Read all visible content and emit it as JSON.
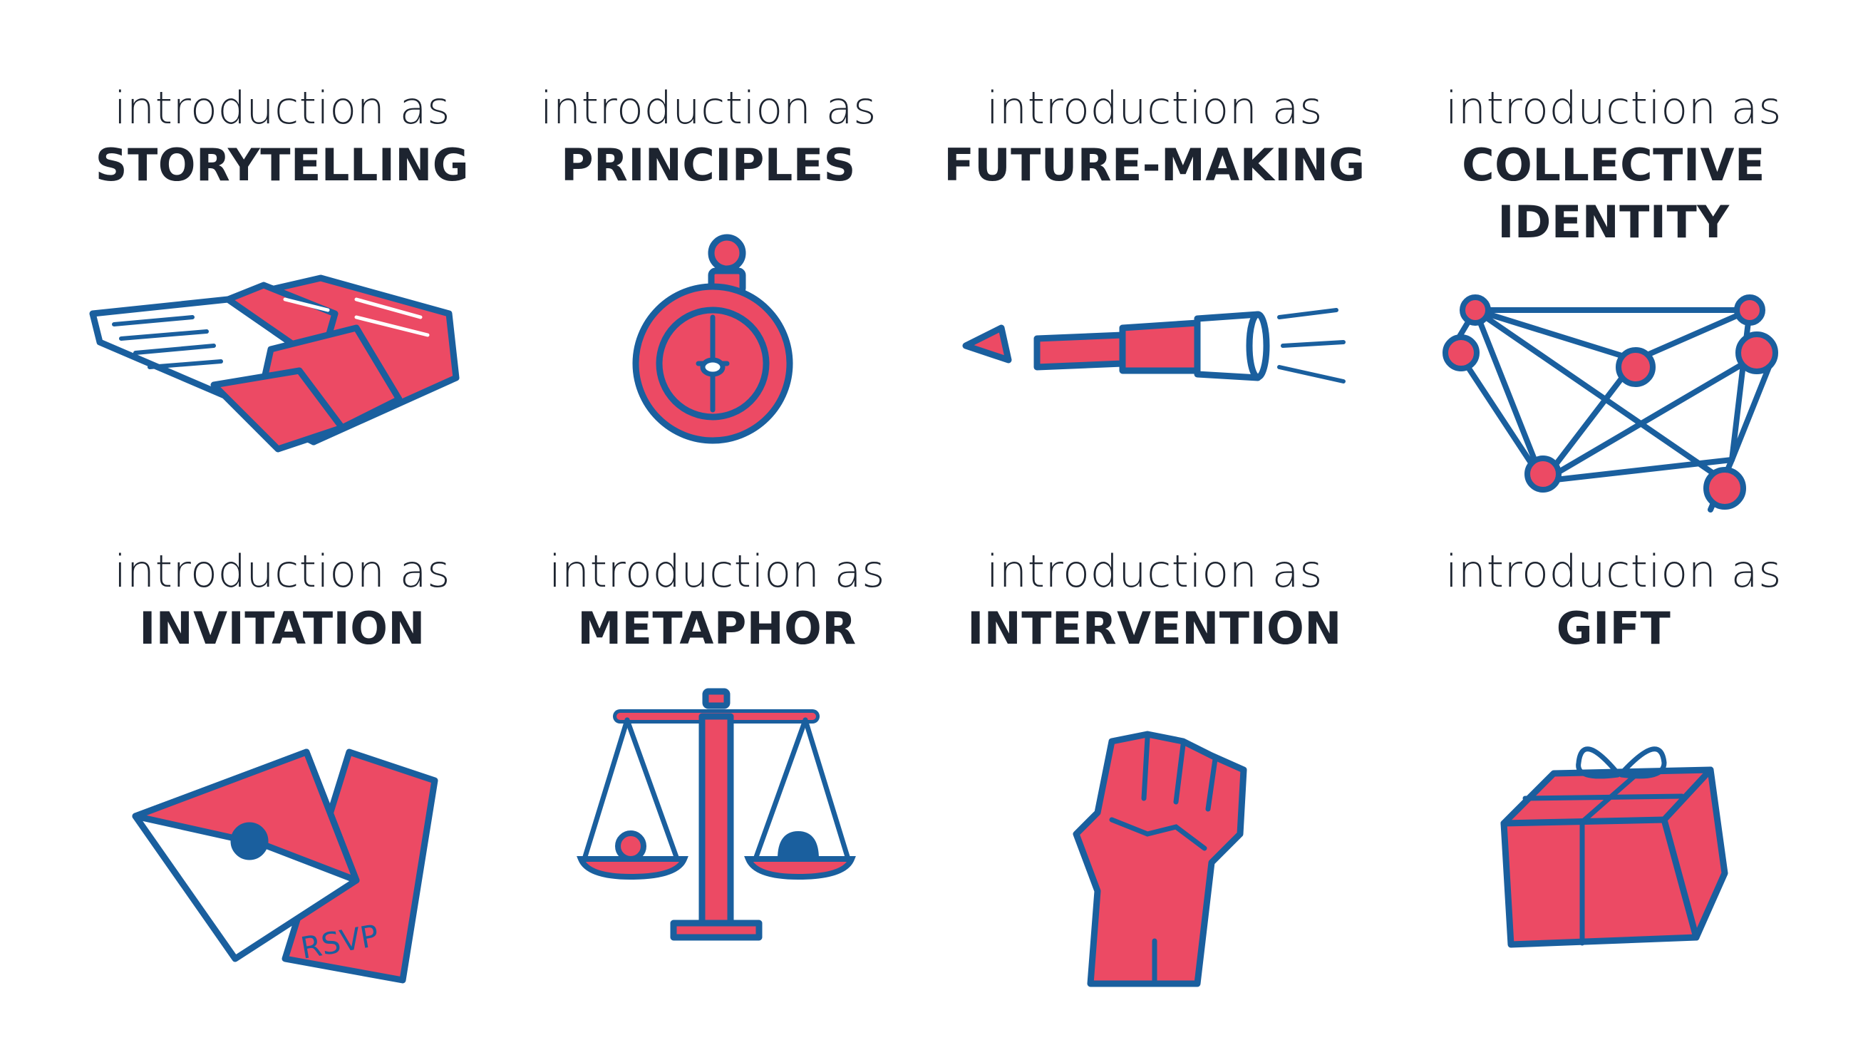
{
  "colors": {
    "red": "#ec4a64",
    "blue": "#1a5f9e",
    "text": "#1d2430"
  },
  "items": [
    {
      "prefix": "introduction as",
      "title": "STORYTELLING",
      "icon": "open-books-icon"
    },
    {
      "prefix": "introduction as",
      "title": "PRINCIPLES",
      "icon": "compass-icon"
    },
    {
      "prefix": "introduction as",
      "title": "FUTURE-MAKING",
      "icon": "telescope-icon"
    },
    {
      "prefix": "introduction as",
      "title": "COLLECTIVE IDENTITY",
      "title_lines": [
        "COLLECTIVE",
        "IDENTITY"
      ],
      "icon": "network-icon"
    },
    {
      "prefix": "introduction as",
      "title": "INVITATION",
      "icon": "envelope-rsvp-icon",
      "icon_text": "RSVP"
    },
    {
      "prefix": "introduction as",
      "title": "METAPHOR",
      "icon": "balance-scale-icon"
    },
    {
      "prefix": "introduction as",
      "title": "INTERVENTION",
      "icon": "raised-fist-icon"
    },
    {
      "prefix": "introduction as",
      "title": "GIFT",
      "icon": "gift-box-icon"
    }
  ]
}
